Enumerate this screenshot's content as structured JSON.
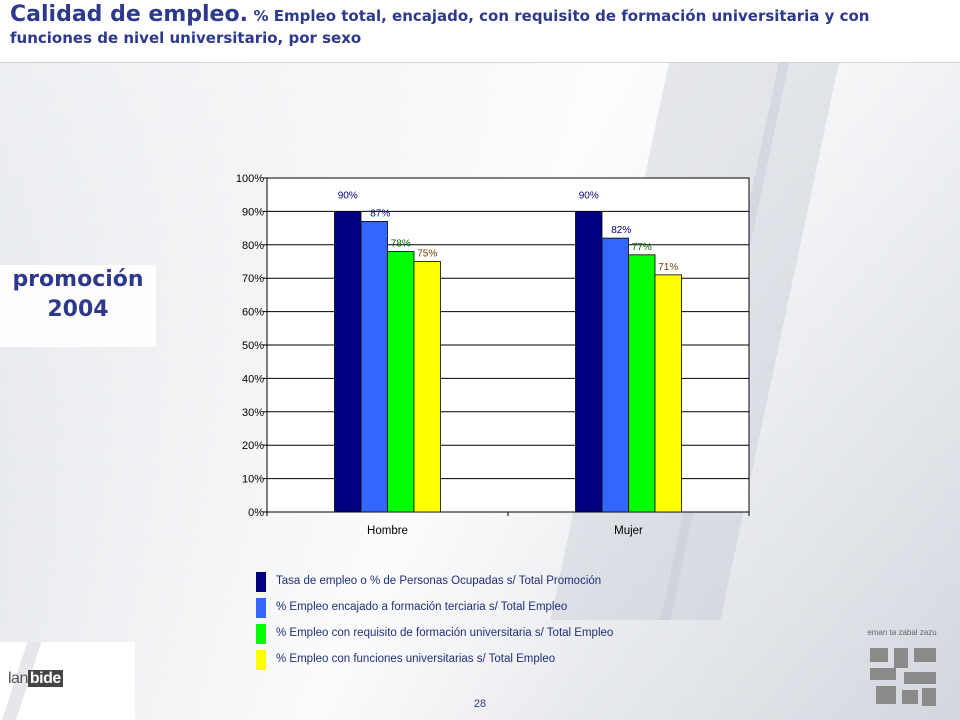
{
  "header": {
    "title_main": "Calidad de empleo.",
    "title_sub": "% Empleo total, encajado, con requisito de formación universitaria y con funciones de nivel universitario, por sexo"
  },
  "promo": {
    "line1": "promoción",
    "line2": "2004"
  },
  "chart_data": {
    "type": "bar",
    "categories": [
      "Hombre",
      "Mujer"
    ],
    "series": [
      {
        "name": "Tasa de empleo o % de Personas Ocupadas  s/ Total Promoción",
        "values": [
          90,
          90
        ],
        "labels": [
          "90%",
          "90%"
        ],
        "color": "#000080"
      },
      {
        "name": "% Empleo encajado a formación terciaria s/ Total Empleo",
        "values": [
          87,
          82
        ],
        "labels": [
          "87%",
          "82%"
        ],
        "color": "#3366ff"
      },
      {
        "name": "% Empleo con requisito de formación universitaria  s/ Total Empleo",
        "values": [
          78,
          77
        ],
        "labels": [
          "78%",
          "77%"
        ],
        "color": "#00ff00"
      },
      {
        "name": "% Empleo con funciones universitarias s/ Total Empleo",
        "values": [
          75,
          71
        ],
        "labels": [
          "75%",
          "71%"
        ],
        "color": "#ffff00"
      }
    ],
    "label_colors": [
      "#000080",
      "#000080",
      "#006400",
      "#7a3a00"
    ],
    "ylim": [
      0,
      100
    ],
    "yticks": [
      0,
      10,
      20,
      30,
      40,
      50,
      60,
      70,
      80,
      90,
      100
    ],
    "ytick_labels": [
      "0%",
      "10%",
      "20%",
      "30%",
      "40%",
      "50%",
      "60%",
      "70%",
      "80%",
      "90%",
      "100%"
    ],
    "grid": true,
    "legend_position": "bottom"
  },
  "footer": {
    "logo_lan": "lan",
    "logo_bide": "bide",
    "page_number": "28",
    "emblem_text": "eman ta zabal zazu"
  }
}
